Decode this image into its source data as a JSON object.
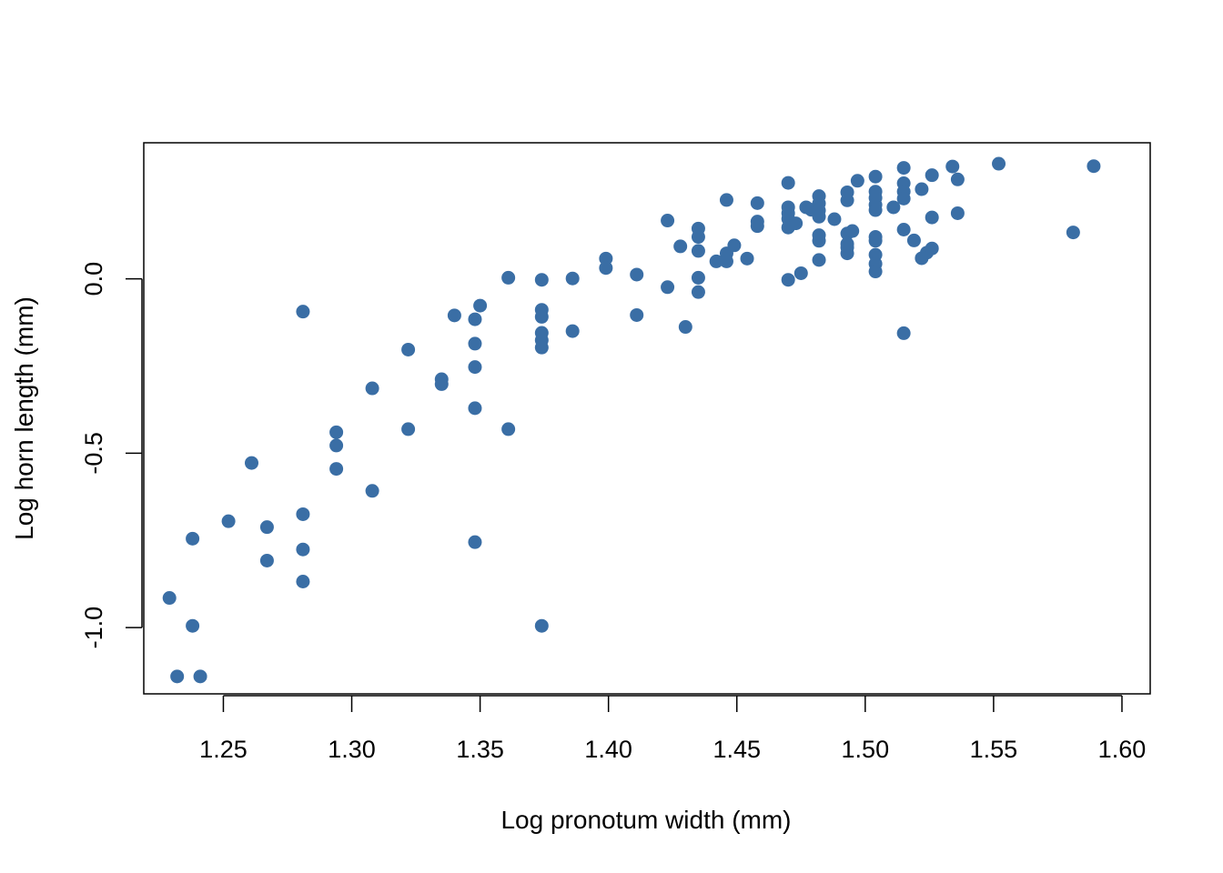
{
  "chart_data": {
    "type": "scatter",
    "title": "",
    "xlabel": "Log pronotum width (mm)",
    "ylabel": "Log horn length (mm)",
    "xlim": [
      1.219,
      1.611
    ],
    "ylim": [
      -1.19,
      0.39
    ],
    "x_ticks": [
      1.25,
      1.3,
      1.35,
      1.4,
      1.45,
      1.5,
      1.55,
      1.6
    ],
    "x_tick_labels": [
      "1.25",
      "1.30",
      "1.35",
      "1.40",
      "1.45",
      "1.50",
      "1.55",
      "1.60"
    ],
    "y_ticks": [
      -1.0,
      -0.5,
      0.0
    ],
    "y_tick_labels": [
      "-1.0",
      "-0.5",
      "0.0"
    ],
    "grid": false,
    "legend": "none",
    "point_color": "#3a6ea5",
    "points": [
      {
        "x": 1.229,
        "y": -0.915
      },
      {
        "x": 1.232,
        "y": -1.14
      },
      {
        "x": 1.238,
        "y": -0.995
      },
      {
        "x": 1.238,
        "y": -0.745
      },
      {
        "x": 1.241,
        "y": -1.14
      },
      {
        "x": 1.252,
        "y": -0.695
      },
      {
        "x": 1.261,
        "y": -0.528
      },
      {
        "x": 1.267,
        "y": -0.712
      },
      {
        "x": 1.267,
        "y": -0.808
      },
      {
        "x": 1.281,
        "y": -0.094
      },
      {
        "x": 1.281,
        "y": -0.675
      },
      {
        "x": 1.281,
        "y": -0.776
      },
      {
        "x": 1.281,
        "y": -0.868
      },
      {
        "x": 1.294,
        "y": -0.44
      },
      {
        "x": 1.294,
        "y": -0.478
      },
      {
        "x": 1.294,
        "y": -0.545
      },
      {
        "x": 1.308,
        "y": -0.314
      },
      {
        "x": 1.308,
        "y": -0.608
      },
      {
        "x": 1.322,
        "y": -0.203
      },
      {
        "x": 1.322,
        "y": -0.431
      },
      {
        "x": 1.335,
        "y": -0.288
      },
      {
        "x": 1.335,
        "y": -0.302
      },
      {
        "x": 1.34,
        "y": -0.105
      },
      {
        "x": 1.348,
        "y": -0.116
      },
      {
        "x": 1.348,
        "y": -0.186
      },
      {
        "x": 1.348,
        "y": -0.253
      },
      {
        "x": 1.348,
        "y": -0.371
      },
      {
        "x": 1.348,
        "y": -0.755
      },
      {
        "x": 1.35,
        "y": -0.077
      },
      {
        "x": 1.361,
        "y": 0.003
      },
      {
        "x": 1.361,
        "y": -0.431
      },
      {
        "x": 1.374,
        "y": -0.003
      },
      {
        "x": 1.374,
        "y": -0.089
      },
      {
        "x": 1.374,
        "y": -0.109
      },
      {
        "x": 1.374,
        "y": -0.155
      },
      {
        "x": 1.374,
        "y": -0.176
      },
      {
        "x": 1.374,
        "y": -0.197
      },
      {
        "x": 1.374,
        "y": -0.995
      },
      {
        "x": 1.386,
        "y": 0.001
      },
      {
        "x": 1.386,
        "y": -0.15
      },
      {
        "x": 1.399,
        "y": 0.058
      },
      {
        "x": 1.399,
        "y": 0.031
      },
      {
        "x": 1.411,
        "y": 0.012
      },
      {
        "x": 1.411,
        "y": -0.104
      },
      {
        "x": 1.423,
        "y": 0.167
      },
      {
        "x": 1.423,
        "y": -0.024
      },
      {
        "x": 1.428,
        "y": 0.093
      },
      {
        "x": 1.43,
        "y": -0.138
      },
      {
        "x": 1.435,
        "y": 0.144
      },
      {
        "x": 1.435,
        "y": 0.12
      },
      {
        "x": 1.435,
        "y": 0.08
      },
      {
        "x": 1.435,
        "y": 0.003
      },
      {
        "x": 1.435,
        "y": -0.038
      },
      {
        "x": 1.442,
        "y": 0.05
      },
      {
        "x": 1.446,
        "y": 0.226
      },
      {
        "x": 1.446,
        "y": 0.073
      },
      {
        "x": 1.446,
        "y": 0.05
      },
      {
        "x": 1.449,
        "y": 0.096
      },
      {
        "x": 1.454,
        "y": 0.058
      },
      {
        "x": 1.458,
        "y": 0.217
      },
      {
        "x": 1.458,
        "y": 0.164
      },
      {
        "x": 1.458,
        "y": 0.151
      },
      {
        "x": 1.47,
        "y": 0.275
      },
      {
        "x": 1.47,
        "y": 0.205
      },
      {
        "x": 1.47,
        "y": 0.188
      },
      {
        "x": 1.47,
        "y": 0.172
      },
      {
        "x": 1.47,
        "y": 0.147
      },
      {
        "x": 1.47,
        "y": -0.003
      },
      {
        "x": 1.473,
        "y": 0.159
      },
      {
        "x": 1.475,
        "y": 0.016
      },
      {
        "x": 1.477,
        "y": 0.205
      },
      {
        "x": 1.479,
        "y": 0.198
      },
      {
        "x": 1.482,
        "y": 0.237
      },
      {
        "x": 1.482,
        "y": 0.216
      },
      {
        "x": 1.482,
        "y": 0.196
      },
      {
        "x": 1.482,
        "y": 0.178
      },
      {
        "x": 1.482,
        "y": 0.125
      },
      {
        "x": 1.482,
        "y": 0.109
      },
      {
        "x": 1.482,
        "y": 0.054
      },
      {
        "x": 1.488,
        "y": 0.171
      },
      {
        "x": 1.493,
        "y": 0.248
      },
      {
        "x": 1.493,
        "y": 0.225
      },
      {
        "x": 1.493,
        "y": 0.13
      },
      {
        "x": 1.493,
        "y": 0.1
      },
      {
        "x": 1.493,
        "y": 0.09
      },
      {
        "x": 1.493,
        "y": 0.073
      },
      {
        "x": 1.495,
        "y": 0.137
      },
      {
        "x": 1.497,
        "y": 0.281
      },
      {
        "x": 1.504,
        "y": 0.293
      },
      {
        "x": 1.504,
        "y": 0.25
      },
      {
        "x": 1.504,
        "y": 0.232
      },
      {
        "x": 1.504,
        "y": 0.212
      },
      {
        "x": 1.504,
        "y": 0.197
      },
      {
        "x": 1.504,
        "y": 0.12
      },
      {
        "x": 1.504,
        "y": 0.109
      },
      {
        "x": 1.504,
        "y": 0.069
      },
      {
        "x": 1.504,
        "y": 0.043
      },
      {
        "x": 1.504,
        "y": 0.021
      },
      {
        "x": 1.511,
        "y": 0.205
      },
      {
        "x": 1.515,
        "y": 0.318
      },
      {
        "x": 1.515,
        "y": 0.274
      },
      {
        "x": 1.515,
        "y": 0.25
      },
      {
        "x": 1.515,
        "y": 0.23
      },
      {
        "x": 1.515,
        "y": 0.141
      },
      {
        "x": 1.515,
        "y": -0.156
      },
      {
        "x": 1.519,
        "y": 0.11
      },
      {
        "x": 1.522,
        "y": 0.257
      },
      {
        "x": 1.522,
        "y": 0.059
      },
      {
        "x": 1.524,
        "y": 0.075
      },
      {
        "x": 1.526,
        "y": 0.297
      },
      {
        "x": 1.526,
        "y": 0.176
      },
      {
        "x": 1.526,
        "y": 0.087
      },
      {
        "x": 1.534,
        "y": 0.322
      },
      {
        "x": 1.536,
        "y": 0.285
      },
      {
        "x": 1.536,
        "y": 0.188
      },
      {
        "x": 1.552,
        "y": 0.33
      },
      {
        "x": 1.581,
        "y": 0.133
      },
      {
        "x": 1.589,
        "y": 0.323
      }
    ]
  }
}
